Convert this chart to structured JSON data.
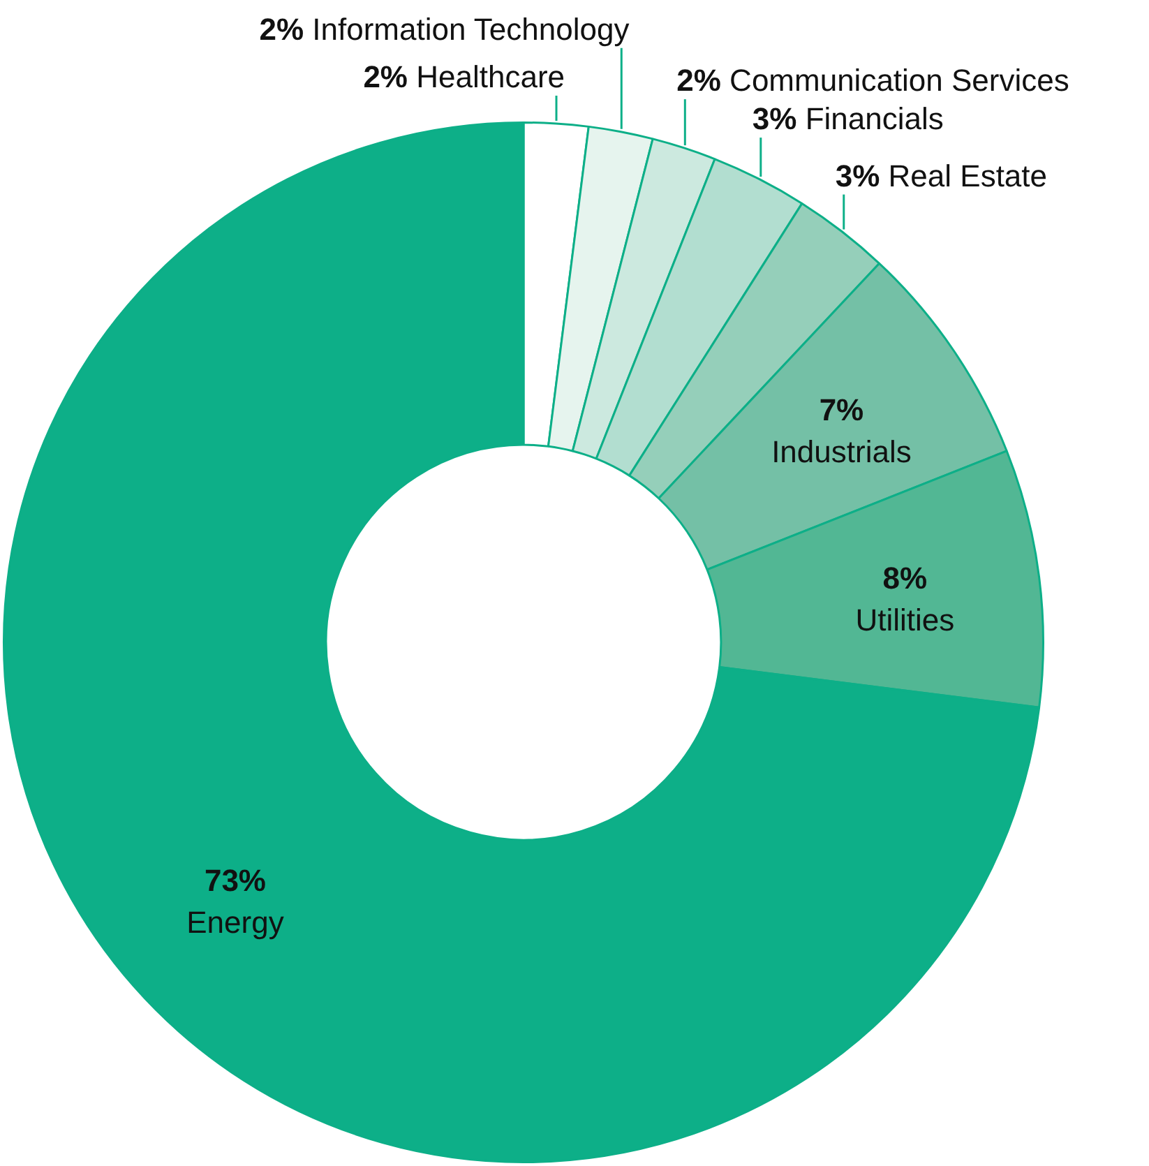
{
  "chart_data": {
    "type": "donut",
    "categories": [
      "Healthcare",
      "Information Technology",
      "Communication Services",
      "Financials",
      "Real Estate",
      "Industrials",
      "Utilities",
      "Energy"
    ],
    "values": [
      2,
      2,
      2,
      3,
      3,
      7,
      8,
      73
    ],
    "colors": [
      "#ffffff",
      "#e6f4ee",
      "#cce9df",
      "#b2ded0",
      "#95cfba",
      "#74c0a6",
      "#52b794",
      "#0daf88"
    ],
    "value_labels": [
      "2%",
      "2%",
      "2%",
      "3%",
      "3%",
      "7%",
      "8%",
      "73%"
    ],
    "legend": false
  }
}
